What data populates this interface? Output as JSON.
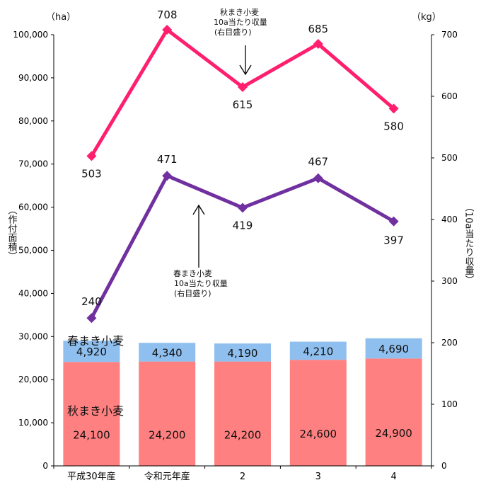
{
  "chart_data": {
    "type": "bar+line",
    "categories": [
      "平成30年産",
      "令和元年産",
      "2",
      "3",
      "4"
    ],
    "bars": {
      "stacked": true,
      "axis": "left",
      "series": [
        {
          "name": "秋まき小麦",
          "values": [
            24100,
            24200,
            24200,
            24600,
            24900
          ],
          "labels": [
            "24,100",
            "24,200",
            "24,200",
            "24,600",
            "24,900"
          ],
          "color": "#ff8080"
        },
        {
          "name": "春まき小麦",
          "values": [
            4920,
            4340,
            4190,
            4210,
            4690
          ],
          "labels": [
            "4,920",
            "4,340",
            "4,190",
            "4,210",
            "4,690"
          ],
          "color": "#8fbfee"
        }
      ]
    },
    "lines": {
      "axis": "right",
      "series": [
        {
          "values": [
            503,
            708,
            615,
            685,
            580
          ],
          "color": "#ff1f6e"
        },
        {
          "values": [
            240,
            471,
            419,
            467,
            397
          ],
          "color": "#7030a0"
        }
      ]
    },
    "annotations": [
      {
        "lines": [
          "秋まき小麦",
          "10a当たり収量",
          "(右目盛り)"
        ]
      },
      {
        "lines": [
          "春まき小麦",
          "10a当たり収量",
          "(右目盛り)"
        ]
      }
    ],
    "yaxis_left": {
      "unit": "（ha）",
      "title": "（作付面積）",
      "range": [
        0,
        100000
      ],
      "ticks": [
        0,
        10000,
        20000,
        30000,
        40000,
        50000,
        60000,
        70000,
        80000,
        90000,
        100000
      ],
      "tick_labels": [
        "0",
        "10,000",
        "20,000",
        "30,000",
        "40,000",
        "50,000",
        "60,000",
        "70,000",
        "80,000",
        "90,000",
        "100,000"
      ]
    },
    "yaxis_right": {
      "unit": "（kg）",
      "title": "（10a当たり収量）",
      "range": [
        0,
        700
      ],
      "ticks": [
        0,
        100,
        200,
        300,
        400,
        500,
        600,
        700
      ],
      "tick_labels": [
        "0",
        "100",
        "200",
        "300",
        "400",
        "500",
        "600",
        "700"
      ]
    },
    "grid": false,
    "legend": "none"
  }
}
